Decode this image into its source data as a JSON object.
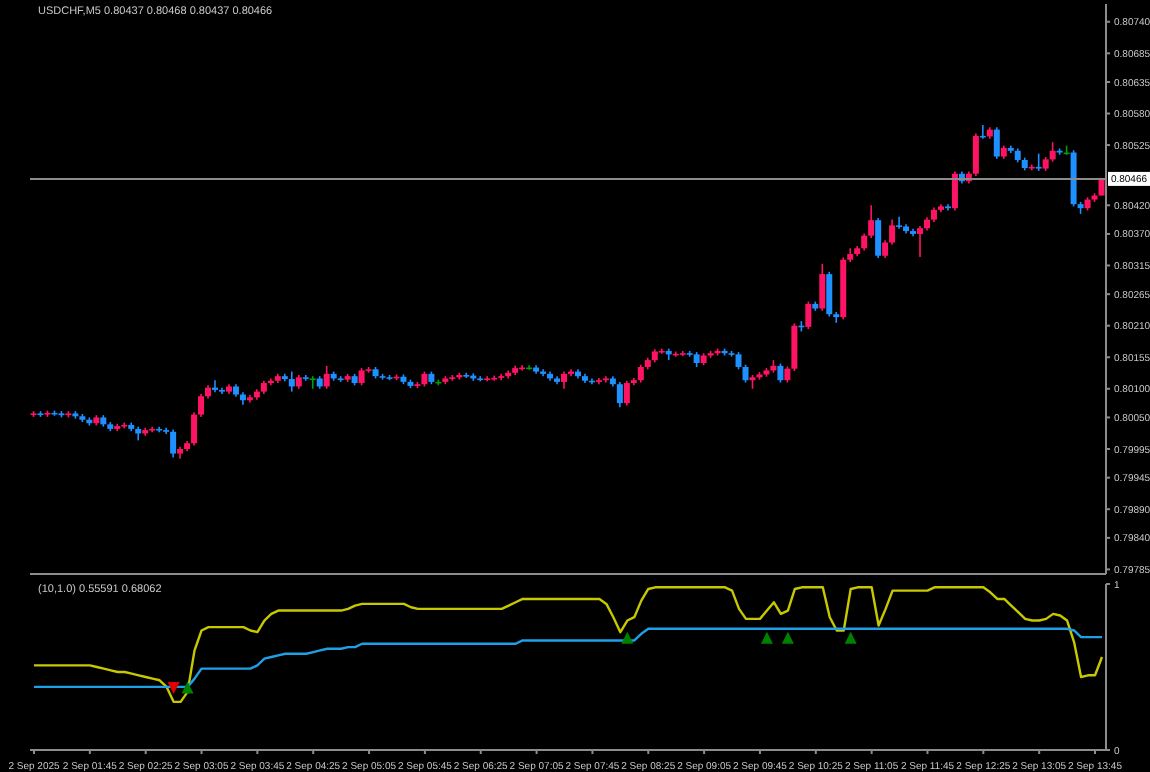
{
  "chart_data": [
    {
      "type": "candlestick",
      "title": "USDCHF,M5 0.80437 0.80468 0.80437 0.80466",
      "categories": [
        null,
        null,
        null,
        null,
        null,
        null,
        null,
        null,
        null,
        null,
        null,
        null,
        null,
        null,
        null,
        null,
        null,
        null,
        null,
        null,
        null,
        null,
        null,
        null,
        null,
        null,
        null,
        null,
        null,
        null,
        null,
        null,
        null,
        null,
        null,
        null,
        null,
        null,
        null,
        null,
        null,
        null,
        null,
        null,
        null,
        null,
        null,
        null,
        null,
        null,
        null,
        null,
        null,
        null,
        null,
        null,
        null,
        null,
        null,
        null,
        null,
        null,
        null,
        null,
        null,
        null,
        null,
        null,
        null,
        null,
        null,
        null,
        null,
        null,
        null,
        null,
        null,
        null,
        null,
        null,
        null,
        null,
        null,
        null,
        null,
        null,
        null,
        null,
        null,
        null,
        null,
        null,
        null,
        null,
        null,
        null,
        null,
        null,
        null,
        null,
        null,
        null,
        null,
        null,
        null,
        null,
        null,
        null,
        null,
        null,
        null,
        null,
        null,
        null,
        null,
        null,
        null,
        null,
        null,
        null,
        null,
        null,
        null,
        null,
        null,
        null,
        null,
        null,
        null,
        null,
        null,
        null,
        null,
        null,
        null,
        null,
        null,
        null,
        null,
        null,
        null,
        null,
        null,
        null,
        null,
        null,
        null,
        null,
        null,
        null,
        null,
        null,
        null,
        null
      ],
      "ohlc": [
        [
          0.80055,
          0.80061,
          0.80051,
          0.80057
        ],
        [
          0.80057,
          0.80061,
          0.80051,
          0.80055
        ],
        [
          0.80055,
          0.80062,
          0.80051,
          0.80058
        ],
        [
          0.80058,
          0.80062,
          0.80053,
          0.80057
        ],
        [
          0.80057,
          0.80061,
          0.8005,
          0.80054
        ],
        [
          0.80054,
          0.80061,
          0.8005,
          0.80057
        ],
        [
          0.80057,
          0.80061,
          0.80048,
          0.80052
        ],
        [
          0.80052,
          0.80056,
          0.80042,
          0.80046
        ],
        [
          0.80046,
          0.8005,
          0.80036,
          0.8004
        ],
        [
          0.8004,
          0.80054,
          0.80036,
          0.8005
        ],
        [
          0.8005,
          0.80054,
          0.80034,
          0.80038
        ],
        [
          0.80038,
          0.80042,
          0.80026,
          0.8003
        ],
        [
          0.8003,
          0.80039,
          0.80026,
          0.80035
        ],
        [
          0.80035,
          0.80041,
          0.80031,
          0.80037
        ],
        [
          0.80037,
          0.80041,
          0.80026,
          0.8003
        ],
        [
          0.8003,
          0.80034,
          0.8001,
          0.80022
        ],
        [
          0.80022,
          0.80032,
          0.80018,
          0.80028
        ],
        [
          0.80028,
          0.80034,
          0.80024,
          0.8003
        ],
        [
          0.8003,
          0.80034,
          0.80024,
          0.80028
        ],
        [
          0.80028,
          0.80032,
          0.80021,
          0.80025
        ],
        [
          0.80025,
          0.80029,
          0.7998,
          0.79987
        ],
        [
          0.79987,
          0.79999,
          0.79978,
          0.79995
        ],
        [
          0.79995,
          0.80009,
          0.79991,
          0.80005
        ],
        [
          0.80005,
          0.80059,
          0.80001,
          0.80055
        ],
        [
          0.80055,
          0.80091,
          0.80051,
          0.80087
        ],
        [
          0.80087,
          0.80106,
          0.80083,
          0.80102
        ],
        [
          0.80102,
          0.80115,
          0.80094,
          0.80098
        ],
        [
          0.80098,
          0.80102,
          0.80091,
          0.80095
        ],
        [
          0.80095,
          0.80108,
          0.80091,
          0.80104
        ],
        [
          0.80104,
          0.80108,
          0.80086,
          0.8009
        ],
        [
          0.8009,
          0.80094,
          0.80072,
          0.8008
        ],
        [
          0.8008,
          0.80089,
          0.80076,
          0.80085
        ],
        [
          0.80085,
          0.80099,
          0.80081,
          0.80095
        ],
        [
          0.80095,
          0.80114,
          0.80091,
          0.8011
        ],
        [
          0.8011,
          0.80118,
          0.80106,
          0.80114
        ],
        [
          0.80114,
          0.80126,
          0.8011,
          0.80122
        ],
        [
          0.80122,
          0.80126,
          0.80113,
          0.80117
        ],
        [
          0.80117,
          0.8013,
          0.80095,
          0.80104
        ],
        [
          0.80104,
          0.80124,
          0.801,
          0.8012
        ],
        [
          0.8012,
          0.80124,
          0.80114,
          0.80118
        ],
        [
          0.80118,
          0.80122,
          0.801,
          0.80118
        ],
        [
          0.80118,
          0.80122,
          0.801,
          0.80104
        ],
        [
          0.80104,
          0.8014,
          0.801,
          0.80126
        ],
        [
          0.80126,
          0.8013,
          0.80114,
          0.80118
        ],
        [
          0.80118,
          0.80122,
          0.80112,
          0.80116
        ],
        [
          0.80116,
          0.80126,
          0.80112,
          0.80122
        ],
        [
          0.80122,
          0.80126,
          0.80106,
          0.8011
        ],
        [
          0.8011,
          0.80136,
          0.80106,
          0.80132
        ],
        [
          0.80132,
          0.80138,
          0.80128,
          0.80134
        ],
        [
          0.80134,
          0.80138,
          0.80118,
          0.80122
        ],
        [
          0.80122,
          0.80126,
          0.80116,
          0.8012
        ],
        [
          0.8012,
          0.80124,
          0.80115,
          0.80119
        ],
        [
          0.80119,
          0.80125,
          0.80115,
          0.80121
        ],
        [
          0.80121,
          0.80125,
          0.80108,
          0.80112
        ],
        [
          0.80112,
          0.80116,
          0.80101,
          0.80105
        ],
        [
          0.80105,
          0.80112,
          0.80101,
          0.80108
        ],
        [
          0.80108,
          0.8013,
          0.80104,
          0.80126
        ],
        [
          0.80126,
          0.8013,
          0.80108,
          0.80112
        ],
        [
          0.80112,
          0.80116,
          0.80106,
          0.80112
        ],
        [
          0.80112,
          0.80122,
          0.80108,
          0.80118
        ],
        [
          0.80118,
          0.80124,
          0.80114,
          0.8012
        ],
        [
          0.8012,
          0.80128,
          0.80116,
          0.80124
        ],
        [
          0.80124,
          0.80128,
          0.80119,
          0.80123
        ],
        [
          0.80123,
          0.80127,
          0.80114,
          0.80118
        ],
        [
          0.80118,
          0.80122,
          0.80113,
          0.80117
        ],
        [
          0.80117,
          0.80122,
          0.80113,
          0.80118
        ],
        [
          0.80118,
          0.80123,
          0.80114,
          0.80119
        ],
        [
          0.80119,
          0.80126,
          0.80115,
          0.80122
        ],
        [
          0.80122,
          0.80132,
          0.80118,
          0.80128
        ],
        [
          0.80128,
          0.8014,
          0.80124,
          0.80136
        ],
        [
          0.80136,
          0.80141,
          0.80132,
          0.80137
        ],
        [
          0.80137,
          0.80141,
          0.80133,
          0.80137
        ],
        [
          0.80137,
          0.80141,
          0.80126,
          0.8013
        ],
        [
          0.8013,
          0.80134,
          0.80122,
          0.80126
        ],
        [
          0.80126,
          0.8013,
          0.80114,
          0.80118
        ],
        [
          0.80118,
          0.80122,
          0.80108,
          0.80112
        ],
        [
          0.80112,
          0.8013,
          0.801,
          0.80126
        ],
        [
          0.80126,
          0.80134,
          0.80122,
          0.8013
        ],
        [
          0.8013,
          0.80134,
          0.80118,
          0.80122
        ],
        [
          0.80122,
          0.80126,
          0.8011,
          0.80114
        ],
        [
          0.80114,
          0.80118,
          0.80108,
          0.80112
        ],
        [
          0.80112,
          0.80119,
          0.80108,
          0.80115
        ],
        [
          0.80115,
          0.80122,
          0.80111,
          0.80118
        ],
        [
          0.80118,
          0.80122,
          0.80104,
          0.80108
        ],
        [
          0.80108,
          0.80112,
          0.80068,
          0.80075
        ],
        [
          0.80075,
          0.80114,
          0.80071,
          0.8011
        ],
        [
          0.8011,
          0.80119,
          0.80106,
          0.80115
        ],
        [
          0.80115,
          0.80142,
          0.80111,
          0.80138
        ],
        [
          0.80138,
          0.80154,
          0.80134,
          0.8015
        ],
        [
          0.8015,
          0.80169,
          0.80146,
          0.80165
        ],
        [
          0.80165,
          0.8017,
          0.80161,
          0.80166
        ],
        [
          0.80166,
          0.8017,
          0.8015,
          0.8016
        ],
        [
          0.8016,
          0.80165,
          0.80156,
          0.80161
        ],
        [
          0.80161,
          0.80166,
          0.80157,
          0.80162
        ],
        [
          0.80162,
          0.80166,
          0.80156,
          0.8016
        ],
        [
          0.8016,
          0.80164,
          0.80138,
          0.80145
        ],
        [
          0.80145,
          0.80162,
          0.80141,
          0.80158
        ],
        [
          0.80158,
          0.80166,
          0.80154,
          0.80162
        ],
        [
          0.80162,
          0.8017,
          0.80158,
          0.80166
        ],
        [
          0.80166,
          0.8017,
          0.80158,
          0.80162
        ],
        [
          0.80162,
          0.80166,
          0.80156,
          0.8016
        ],
        [
          0.8016,
          0.80164,
          0.80134,
          0.80138
        ],
        [
          0.80138,
          0.80142,
          0.80111,
          0.80115
        ],
        [
          0.80115,
          0.80124,
          0.801,
          0.8012
        ],
        [
          0.8012,
          0.80129,
          0.80116,
          0.80125
        ],
        [
          0.80125,
          0.80136,
          0.80121,
          0.80132
        ],
        [
          0.80132,
          0.8015,
          0.80128,
          0.8014
        ],
        [
          0.8014,
          0.80144,
          0.80111,
          0.80115
        ],
        [
          0.80115,
          0.80139,
          0.80111,
          0.80135
        ],
        [
          0.80135,
          0.80214,
          0.80131,
          0.8021
        ],
        [
          0.8021,
          0.80218,
          0.802,
          0.80208
        ],
        [
          0.80208,
          0.80252,
          0.80204,
          0.80248
        ],
        [
          0.80248,
          0.80252,
          0.80236,
          0.8024
        ],
        [
          0.8024,
          0.80318,
          0.80236,
          0.803
        ],
        [
          0.803,
          0.80304,
          0.80226,
          0.8023
        ],
        [
          0.8023,
          0.80234,
          0.80215,
          0.80225
        ],
        [
          0.80225,
          0.80329,
          0.80221,
          0.80325
        ],
        [
          0.80325,
          0.80345,
          0.80321,
          0.80335
        ],
        [
          0.80335,
          0.80349,
          0.80331,
          0.80345
        ],
        [
          0.80345,
          0.80371,
          0.80341,
          0.80367
        ],
        [
          0.80367,
          0.8042,
          0.80363,
          0.80394
        ],
        [
          0.80394,
          0.80398,
          0.80328,
          0.80332
        ],
        [
          0.80332,
          0.80359,
          0.80328,
          0.80355
        ],
        [
          0.80355,
          0.80395,
          0.80351,
          0.80385
        ],
        [
          0.80385,
          0.804,
          0.80379,
          0.80383
        ],
        [
          0.80383,
          0.80387,
          0.80371,
          0.80375
        ],
        [
          0.80375,
          0.80379,
          0.80366,
          0.8037
        ],
        [
          0.8037,
          0.80384,
          0.8033,
          0.8038
        ],
        [
          0.8038,
          0.80399,
          0.80376,
          0.80395
        ],
        [
          0.80395,
          0.80416,
          0.80391,
          0.80412
        ],
        [
          0.80412,
          0.80422,
          0.80408,
          0.80418
        ],
        [
          0.80418,
          0.80422,
          0.80411,
          0.80415
        ],
        [
          0.80415,
          0.80479,
          0.80411,
          0.80475
        ],
        [
          0.80475,
          0.80479,
          0.80458,
          0.80462
        ],
        [
          0.80462,
          0.80479,
          0.80458,
          0.80475
        ],
        [
          0.80475,
          0.80545,
          0.80471,
          0.80541
        ],
        [
          0.80541,
          0.8056,
          0.80536,
          0.8054
        ],
        [
          0.8054,
          0.80556,
          0.80536,
          0.80552
        ],
        [
          0.80552,
          0.80556,
          0.80501,
          0.80505
        ],
        [
          0.80505,
          0.80524,
          0.80501,
          0.8052
        ],
        [
          0.8052,
          0.80524,
          0.80511,
          0.80515
        ],
        [
          0.80515,
          0.80519,
          0.80495,
          0.80499
        ],
        [
          0.80499,
          0.80503,
          0.80481,
          0.80485
        ],
        [
          0.80485,
          0.80491,
          0.80481,
          0.80487
        ],
        [
          0.80487,
          0.8051,
          0.8048,
          0.80484
        ],
        [
          0.80484,
          0.80504,
          0.8048,
          0.805
        ],
        [
          0.805,
          0.8053,
          0.80496,
          0.80515
        ],
        [
          0.80515,
          0.80519,
          0.80508,
          0.80512
        ],
        [
          0.80512,
          0.80524,
          0.80508,
          0.80512
        ],
        [
          0.80512,
          0.80516,
          0.80418,
          0.80422
        ],
        [
          0.80422,
          0.80426,
          0.80405,
          0.80415
        ],
        [
          0.80415,
          0.80434,
          0.80411,
          0.8043
        ],
        [
          0.8043,
          0.80441,
          0.80426,
          0.80437
        ],
        [
          0.80437,
          0.80468,
          0.80437,
          0.80466
        ]
      ],
      "colors": [
        "#ff1465",
        "#1e90ff",
        "#ff1465",
        "#1e90ff",
        "#1e90ff",
        "#ff1465",
        "#1e90ff",
        "#1e90ff",
        "#1e90ff",
        "#ff1465",
        "#1e90ff",
        "#1e90ff",
        "#ff1465",
        "#ff1465",
        "#1e90ff",
        "#1e90ff",
        "#ff1465",
        "#ff1465",
        "#1e90ff",
        "#1e90ff",
        "#1e90ff",
        "#ff1465",
        "#ff1465",
        "#ff1465",
        "#ff1465",
        "#ff1465",
        "#1e90ff",
        "#1e90ff",
        "#ff1465",
        "#1e90ff",
        "#1e90ff",
        "#ff1465",
        "#ff1465",
        "#ff1465",
        "#ff1465",
        "#ff1465",
        "#1e90ff",
        "#1e90ff",
        "#ff1465",
        "#1e90ff",
        "#00a000",
        "#1e90ff",
        "#ff1465",
        "#1e90ff",
        "#1e90ff",
        "#ff1465",
        "#1e90ff",
        "#ff1465",
        "#ff1465",
        "#1e90ff",
        "#1e90ff",
        "#1e90ff",
        "#ff1465",
        "#1e90ff",
        "#1e90ff",
        "#ff1465",
        "#ff1465",
        "#1e90ff",
        "#00a000",
        "#ff1465",
        "#ff1465",
        "#ff1465",
        "#1e90ff",
        "#1e90ff",
        "#1e90ff",
        "#ff1465",
        "#ff1465",
        "#ff1465",
        "#ff1465",
        "#ff1465",
        "#ff1465",
        "#00a000",
        "#1e90ff",
        "#1e90ff",
        "#1e90ff",
        "#1e90ff",
        "#ff1465",
        "#ff1465",
        "#1e90ff",
        "#1e90ff",
        "#1e90ff",
        "#ff1465",
        "#ff1465",
        "#1e90ff",
        "#1e90ff",
        "#ff1465",
        "#ff1465",
        "#ff1465",
        "#ff1465",
        "#ff1465",
        "#ff1465",
        "#1e90ff",
        "#ff1465",
        "#ff1465",
        "#1e90ff",
        "#1e90ff",
        "#ff1465",
        "#ff1465",
        "#ff1465",
        "#1e90ff",
        "#1e90ff",
        "#1e90ff",
        "#1e90ff",
        "#ff1465",
        "#ff1465",
        "#ff1465",
        "#ff1465",
        "#1e90ff",
        "#ff1465",
        "#ff1465",
        "#1e90ff",
        "#ff1465",
        "#1e90ff",
        "#ff1465",
        "#1e90ff",
        "#1e90ff",
        "#ff1465",
        "#ff1465",
        "#ff1465",
        "#ff1465",
        "#ff1465",
        "#1e90ff",
        "#ff1465",
        "#ff1465",
        "#1e90ff",
        "#1e90ff",
        "#1e90ff",
        "#ff1465",
        "#ff1465",
        "#ff1465",
        "#ff1465",
        "#1e90ff",
        "#ff1465",
        "#1e90ff",
        "#ff1465",
        "#ff1465",
        "#1e90ff",
        "#ff1465",
        "#1e90ff",
        "#ff1465",
        "#1e90ff",
        "#1e90ff",
        "#1e90ff",
        "#ff1465",
        "#1e90ff",
        "#ff1465",
        "#ff1465",
        "#1e90ff",
        "#00a000",
        "#1e90ff",
        "#1e90ff",
        "#ff1465",
        "#ff1465",
        "#ff1465"
      ],
      "ylim": [
        0.79777,
        0.80771
      ],
      "yticks": [
        {
          "value": 0.8074,
          "label": "0.80740"
        },
        {
          "value": 0.80685,
          "label": "0.80685"
        },
        {
          "value": 0.80635,
          "label": "0.80635"
        },
        {
          "value": 0.8058,
          "label": "0.80580"
        },
        {
          "value": 0.80525,
          "label": "0.80525"
        },
        {
          "value": 0.8042,
          "label": "0.80420"
        },
        {
          "value": 0.8037,
          "label": "0.80370"
        },
        {
          "value": 0.80315,
          "label": "0.80315"
        },
        {
          "value": 0.80265,
          "label": "0.80265"
        },
        {
          "value": 0.8021,
          "label": "0.80210"
        },
        {
          "value": 0.80155,
          "label": "0.80155"
        },
        {
          "value": 0.801,
          "label": "0.80100"
        },
        {
          "value": 0.8005,
          "label": "0.80050"
        },
        {
          "value": 0.79995,
          "label": "0.79995"
        },
        {
          "value": 0.79945,
          "label": "0.79945"
        },
        {
          "value": 0.7989,
          "label": "0.79890"
        },
        {
          "value": 0.7984,
          "label": "0.79840"
        },
        {
          "value": 0.79785,
          "label": "0.79785"
        }
      ],
      "ref_lines": [
        {
          "axis": "y",
          "value": 0.80466,
          "label": "0.80466",
          "color": "#8c8c8c"
        }
      ],
      "tick_labels": "y",
      "grid": false,
      "legend": false
    },
    {
      "type": "line",
      "title": "(10,1.0) 0.55591 0.68062",
      "categories": [
        "2 Sep 2025",
        null,
        null,
        null,
        null,
        null,
        null,
        null,
        "2 Sep 01:45",
        null,
        null,
        null,
        null,
        null,
        null,
        null,
        "2 Sep 02:25",
        null,
        null,
        null,
        null,
        null,
        null,
        null,
        "2 Sep 03:05",
        null,
        null,
        null,
        null,
        null,
        null,
        null,
        "2 Sep 03:45",
        null,
        null,
        null,
        null,
        null,
        null,
        null,
        "2 Sep 04:25",
        null,
        null,
        null,
        null,
        null,
        null,
        null,
        "2 Sep 05:05",
        null,
        null,
        null,
        null,
        null,
        null,
        null,
        "2 Sep 05:45",
        null,
        null,
        null,
        null,
        null,
        null,
        null,
        "2 Sep 06:25",
        null,
        null,
        null,
        null,
        null,
        null,
        null,
        "2 Sep 07:05",
        null,
        null,
        null,
        null,
        null,
        null,
        null,
        "2 Sep 07:45",
        null,
        null,
        null,
        null,
        null,
        null,
        null,
        "2 Sep 08:25",
        null,
        null,
        null,
        null,
        null,
        null,
        null,
        "2 Sep 09:05",
        null,
        null,
        null,
        null,
        null,
        null,
        null,
        "2 Sep 09:45",
        null,
        null,
        null,
        null,
        null,
        null,
        null,
        "2 Sep 10:25",
        null,
        null,
        null,
        null,
        null,
        null,
        null,
        "2 Sep 11:05",
        null,
        null,
        null,
        null,
        null,
        null,
        null,
        "2 Sep 11:45",
        null,
        null,
        null,
        null,
        null,
        null,
        null,
        "2 Sep 12:25",
        null,
        null,
        null,
        null,
        null,
        null,
        null,
        "2 Sep 13:05",
        null,
        null,
        null,
        null,
        null,
        null,
        null,
        "2 Sep 13:45",
        null
      ],
      "series": [
        {
          "type": "line",
          "color": "#c8c800",
          "marker": "none",
          "values": [
            0.51,
            0.51,
            0.51,
            0.51,
            0.51,
            0.51,
            0.51,
            0.51,
            0.51,
            0.5,
            0.49,
            0.48,
            0.47,
            0.47,
            0.46,
            0.45,
            0.44,
            0.43,
            0.42,
            0.38,
            0.29,
            0.29,
            0.35,
            0.6,
            0.72,
            0.74,
            0.74,
            0.74,
            0.74,
            0.74,
            0.74,
            0.72,
            0.71,
            0.78,
            0.82,
            0.84,
            0.84,
            0.84,
            0.84,
            0.84,
            0.84,
            0.84,
            0.84,
            0.84,
            0.84,
            0.85,
            0.87,
            0.88,
            0.88,
            0.88,
            0.88,
            0.88,
            0.88,
            0.88,
            0.86,
            0.85,
            0.85,
            0.85,
            0.85,
            0.85,
            0.85,
            0.85,
            0.85,
            0.85,
            0.85,
            0.85,
            0.85,
            0.85,
            0.87,
            0.89,
            0.91,
            0.91,
            0.91,
            0.91,
            0.91,
            0.91,
            0.91,
            0.91,
            0.91,
            0.91,
            0.91,
            0.91,
            0.88,
            0.8,
            0.71,
            0.78,
            0.8,
            0.9,
            0.97,
            0.98,
            0.98,
            0.98,
            0.98,
            0.98,
            0.98,
            0.98,
            0.98,
            0.98,
            0.98,
            0.98,
            0.96,
            0.85,
            0.79,
            0.79,
            0.79,
            0.84,
            0.89,
            0.82,
            0.84,
            0.97,
            0.98,
            0.98,
            0.98,
            0.98,
            0.8,
            0.72,
            0.72,
            0.97,
            0.98,
            0.98,
            0.98,
            0.75,
            0.85,
            0.96,
            0.96,
            0.96,
            0.96,
            0.96,
            0.96,
            0.98,
            0.98,
            0.98,
            0.98,
            0.98,
            0.98,
            0.98,
            0.98,
            0.95,
            0.91,
            0.91,
            0.87,
            0.83,
            0.79,
            0.78,
            0.78,
            0.79,
            0.82,
            0.81,
            0.78,
            0.65,
            0.44,
            0.45,
            0.45,
            0.56
          ]
        },
        {
          "type": "line",
          "color": "#1ea0e6",
          "marker": "none",
          "values": [
            0.38,
            0.38,
            0.38,
            0.38,
            0.38,
            0.38,
            0.38,
            0.38,
            0.38,
            0.38,
            0.38,
            0.38,
            0.38,
            0.38,
            0.38,
            0.38,
            0.38,
            0.38,
            0.38,
            0.38,
            0.38,
            0.38,
            0.38,
            0.43,
            0.49,
            0.49,
            0.49,
            0.49,
            0.49,
            0.49,
            0.49,
            0.49,
            0.51,
            0.55,
            0.56,
            0.57,
            0.58,
            0.58,
            0.58,
            0.58,
            0.59,
            0.6,
            0.61,
            0.61,
            0.61,
            0.62,
            0.62,
            0.64,
            0.64,
            0.64,
            0.64,
            0.64,
            0.64,
            0.64,
            0.64,
            0.64,
            0.64,
            0.64,
            0.64,
            0.64,
            0.64,
            0.64,
            0.64,
            0.64,
            0.64,
            0.64,
            0.64,
            0.64,
            0.64,
            0.64,
            0.66,
            0.66,
            0.66,
            0.66,
            0.66,
            0.66,
            0.66,
            0.66,
            0.66,
            0.66,
            0.66,
            0.66,
            0.66,
            0.66,
            0.66,
            0.66,
            0.66,
            0.7,
            0.73,
            0.73,
            0.73,
            0.73,
            0.73,
            0.73,
            0.73,
            0.73,
            0.73,
            0.73,
            0.73,
            0.73,
            0.73,
            0.73,
            0.73,
            0.73,
            0.73,
            0.73,
            0.73,
            0.73,
            0.73,
            0.73,
            0.73,
            0.73,
            0.73,
            0.73,
            0.73,
            0.73,
            0.73,
            0.73,
            0.73,
            0.73,
            0.73,
            0.73,
            0.73,
            0.73,
            0.73,
            0.73,
            0.73,
            0.73,
            0.73,
            0.73,
            0.73,
            0.73,
            0.73,
            0.73,
            0.73,
            0.73,
            0.73,
            0.73,
            0.73,
            0.73,
            0.73,
            0.73,
            0.73,
            0.73,
            0.73,
            0.73,
            0.73,
            0.73,
            0.73,
            0.72,
            0.68,
            0.68,
            0.68,
            0.68
          ]
        },
        {
          "type": "scatter",
          "color": "#e00000",
          "marker": "triangle",
          "values": [
            null,
            null,
            null,
            null,
            null,
            null,
            null,
            null,
            null,
            null,
            null,
            null,
            null,
            null,
            null,
            null,
            null,
            null,
            null,
            null,
            0.38,
            null,
            null,
            null,
            null,
            null,
            null,
            null,
            null,
            null,
            null,
            null,
            null,
            null,
            null,
            null,
            null,
            null,
            null,
            null,
            null,
            null,
            null,
            null,
            null,
            null,
            null,
            null,
            null,
            null,
            null,
            null,
            null,
            null,
            null,
            null,
            null,
            null,
            null,
            null,
            null,
            null,
            null,
            null,
            null,
            null,
            null,
            null,
            null,
            null,
            null,
            null,
            null,
            null,
            null,
            null,
            null,
            null,
            null,
            null,
            null,
            null,
            null,
            null,
            null,
            null,
            null,
            null,
            null,
            null,
            null,
            null,
            null,
            null,
            null,
            null,
            null,
            null,
            null,
            null,
            null,
            null,
            null,
            null,
            null,
            null,
            null,
            null,
            null,
            null,
            null,
            null,
            null,
            null,
            null,
            null,
            null,
            null,
            null,
            null,
            null,
            null,
            null,
            null,
            null,
            null,
            null,
            null,
            null,
            null,
            null,
            null,
            null,
            null,
            null,
            null,
            null,
            null,
            null,
            null,
            null,
            null,
            null,
            null,
            null,
            null,
            null,
            null,
            null,
            null,
            null,
            null,
            null,
            null
          ]
        },
        {
          "type": "scatter",
          "color": "#008000",
          "marker": "triangle",
          "values": [
            null,
            null,
            null,
            null,
            null,
            null,
            null,
            null,
            null,
            null,
            null,
            null,
            null,
            null,
            null,
            null,
            null,
            null,
            null,
            null,
            null,
            null,
            0.37,
            null,
            null,
            null,
            null,
            null,
            null,
            null,
            null,
            null,
            null,
            null,
            null,
            null,
            null,
            null,
            null,
            null,
            null,
            null,
            null,
            null,
            null,
            null,
            null,
            null,
            null,
            null,
            null,
            null,
            null,
            null,
            null,
            null,
            null,
            null,
            null,
            null,
            null,
            null,
            null,
            null,
            null,
            null,
            null,
            null,
            null,
            null,
            null,
            null,
            null,
            null,
            null,
            null,
            null,
            null,
            null,
            null,
            null,
            null,
            null,
            null,
            null,
            0.67,
            null,
            null,
            null,
            null,
            null,
            null,
            null,
            null,
            null,
            null,
            null,
            null,
            null,
            null,
            null,
            null,
            null,
            null,
            null,
            0.67,
            null,
            null,
            0.67,
            null,
            null,
            null,
            null,
            null,
            null,
            null,
            null,
            0.67,
            null,
            null,
            null,
            null,
            null,
            null,
            null,
            null,
            null,
            null,
            null,
            null,
            null,
            null,
            null,
            null,
            null,
            null,
            null,
            null,
            null,
            null,
            null,
            null,
            null,
            null,
            null,
            null,
            null,
            null,
            null,
            null,
            null,
            null,
            null,
            null
          ]
        }
      ],
      "ylim": [
        0,
        1
      ],
      "yticks": [
        0,
        1
      ],
      "grid": false,
      "legend": false
    }
  ]
}
